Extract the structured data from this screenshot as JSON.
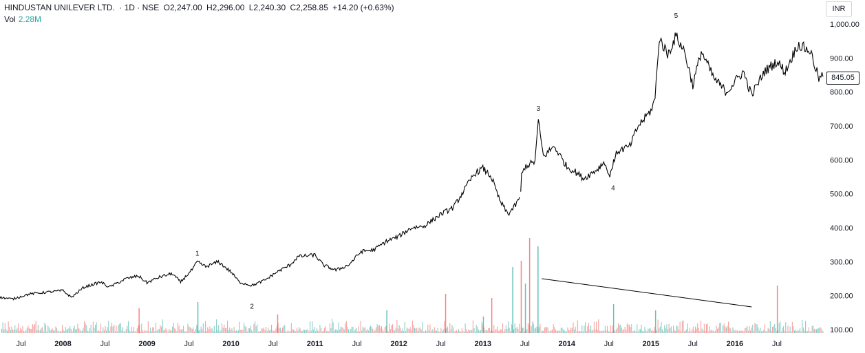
{
  "header": {
    "symbol": "HINDUSTAN UNILEVER LTD.",
    "interval": "· 1D · NSE",
    "open": "O2,247.00",
    "high": "H2,296.00",
    "low": "L2,240.30",
    "close": "C2,258.85",
    "change": "+14.20 (+0.63%)",
    "vol_label": "Vol",
    "vol_value": "2.28M"
  },
  "currency": "INR",
  "last_price_label": "845.05",
  "colors": {
    "up_volume": "#26a69a",
    "down_volume": "#ef5350",
    "price_line": "#000000",
    "trendline": "#000000",
    "text": "#131722"
  },
  "chart_data": {
    "type": "line",
    "y_axis": {
      "ticks": [
        "1,000.00",
        "900.00",
        "800.00",
        "700.00",
        "600.00",
        "500.00",
        "400.00",
        "300.00",
        "200.00",
        "100.00"
      ],
      "tick_values": [
        1000,
        900,
        800,
        700,
        600,
        500,
        400,
        300,
        200,
        100
      ],
      "ylim": [
        82,
        1038
      ]
    },
    "x_axis": {
      "ticks": [
        {
          "label": "Jul",
          "t": 2007.5,
          "year": false
        },
        {
          "label": "2008",
          "t": 2008.0,
          "year": true
        },
        {
          "label": "Jul",
          "t": 2008.5,
          "year": false
        },
        {
          "label": "2009",
          "t": 2009.0,
          "year": true
        },
        {
          "label": "Jul",
          "t": 2009.5,
          "year": false
        },
        {
          "label": "2010",
          "t": 2010.0,
          "year": true
        },
        {
          "label": "Jul",
          "t": 2010.5,
          "year": false
        },
        {
          "label": "2011",
          "t": 2011.0,
          "year": true
        },
        {
          "label": "Jul",
          "t": 2011.5,
          "year": false
        },
        {
          "label": "2012",
          "t": 2012.0,
          "year": true
        },
        {
          "label": "Jul",
          "t": 2012.5,
          "year": false
        },
        {
          "label": "2013",
          "t": 2013.0,
          "year": true
        },
        {
          "label": "Jul",
          "t": 2013.5,
          "year": false
        },
        {
          "label": "2014",
          "t": 2014.0,
          "year": true
        },
        {
          "label": "Jul",
          "t": 2014.5,
          "year": false
        },
        {
          "label": "2015",
          "t": 2015.0,
          "year": true
        },
        {
          "label": "Jul",
          "t": 2015.5,
          "year": false
        },
        {
          "label": "2016",
          "t": 2016.0,
          "year": true
        },
        {
          "label": "Jul",
          "t": 2016.5,
          "year": false
        }
      ],
      "xlim": [
        2007.25,
        2017.05
      ]
    },
    "price_series": {
      "points": [
        [
          2007.25,
          195
        ],
        [
          2007.4,
          190
        ],
        [
          2007.6,
          205
        ],
        [
          2007.8,
          210
        ],
        [
          2008.0,
          215
        ],
        [
          2008.1,
          195
        ],
        [
          2008.25,
          225
        ],
        [
          2008.45,
          240
        ],
        [
          2008.55,
          225
        ],
        [
          2008.75,
          250
        ],
        [
          2008.9,
          258
        ],
        [
          2009.0,
          238
        ],
        [
          2009.15,
          255
        ],
        [
          2009.3,
          265
        ],
        [
          2009.4,
          240
        ],
        [
          2009.55,
          280
        ],
        [
          2009.6,
          300
        ],
        [
          2009.7,
          285
        ],
        [
          2009.85,
          300
        ],
        [
          2010.0,
          270
        ],
        [
          2010.1,
          240
        ],
        [
          2010.25,
          230
        ],
        [
          2010.4,
          245
        ],
        [
          2010.55,
          270
        ],
        [
          2010.7,
          290
        ],
        [
          2010.8,
          315
        ],
        [
          2011.0,
          320
        ],
        [
          2011.1,
          290
        ],
        [
          2011.25,
          275
        ],
        [
          2011.4,
          290
        ],
        [
          2011.55,
          330
        ],
        [
          2011.7,
          335
        ],
        [
          2011.85,
          360
        ],
        [
          2012.0,
          375
        ],
        [
          2012.15,
          400
        ],
        [
          2012.3,
          405
        ],
        [
          2012.5,
          440
        ],
        [
          2012.65,
          460
        ],
        [
          2012.75,
          500
        ],
        [
          2012.9,
          560
        ],
        [
          2013.0,
          575
        ],
        [
          2013.1,
          550
        ],
        [
          2013.2,
          480
        ],
        [
          2013.3,
          440
        ],
        [
          2013.4,
          470
        ],
        [
          2013.45,
          500
        ],
        [
          2013.46,
          555
        ],
        [
          2013.5,
          580
        ],
        [
          2013.62,
          595
        ],
        [
          2013.66,
          715
        ],
        [
          2013.72,
          610
        ],
        [
          2013.85,
          640
        ],
        [
          2014.0,
          580
        ],
        [
          2014.1,
          565
        ],
        [
          2014.2,
          545
        ],
        [
          2014.35,
          570
        ],
        [
          2014.45,
          595
        ],
        [
          2014.5,
          550
        ],
        [
          2014.6,
          625
        ],
        [
          2014.75,
          640
        ],
        [
          2014.85,
          700
        ],
        [
          2015.0,
          745
        ],
        [
          2015.05,
          780
        ],
        [
          2015.1,
          960
        ],
        [
          2015.2,
          910
        ],
        [
          2015.3,
          965
        ],
        [
          2015.4,
          920
        ],
        [
          2015.5,
          820
        ],
        [
          2015.6,
          920
        ],
        [
          2015.75,
          840
        ],
        [
          2015.9,
          800
        ],
        [
          2016.0,
          830
        ],
        [
          2016.1,
          860
        ],
        [
          2016.2,
          790
        ],
        [
          2016.35,
          860
        ],
        [
          2016.5,
          890
        ],
        [
          2016.6,
          860
        ],
        [
          2016.75,
          940
        ],
        [
          2016.9,
          920
        ],
        [
          2017.0,
          840
        ],
        [
          2017.05,
          845
        ]
      ]
    },
    "volume_series": {
      "spikes": [
        [
          2013.0,
          40
        ],
        [
          2013.1,
          85
        ],
        [
          2013.35,
          160
        ],
        [
          2013.45,
          175
        ],
        [
          2013.5,
          120
        ],
        [
          2013.55,
          230
        ],
        [
          2013.65,
          210
        ],
        [
          2012.55,
          95
        ],
        [
          2009.6,
          75
        ],
        [
          2008.9,
          60
        ],
        [
          2015.05,
          55
        ],
        [
          2016.5,
          115
        ],
        [
          2014.55,
          70
        ],
        [
          2010.55,
          45
        ],
        [
          2011.85,
          55
        ]
      ],
      "base_volume_max": 60,
      "axis_baseline": 100
    },
    "trendline": {
      "from": [
        2013.7,
        250
      ],
      "to": [
        2016.2,
        167
      ]
    },
    "wave_labels": [
      {
        "label": "1",
        "t": 2009.6,
        "v": 318
      },
      {
        "label": "2",
        "t": 2010.25,
        "v": 162
      },
      {
        "label": "3",
        "t": 2013.66,
        "v": 745
      },
      {
        "label": "4",
        "t": 2014.55,
        "v": 510
      },
      {
        "label": "5",
        "t": 2015.3,
        "v": 1018
      }
    ]
  }
}
